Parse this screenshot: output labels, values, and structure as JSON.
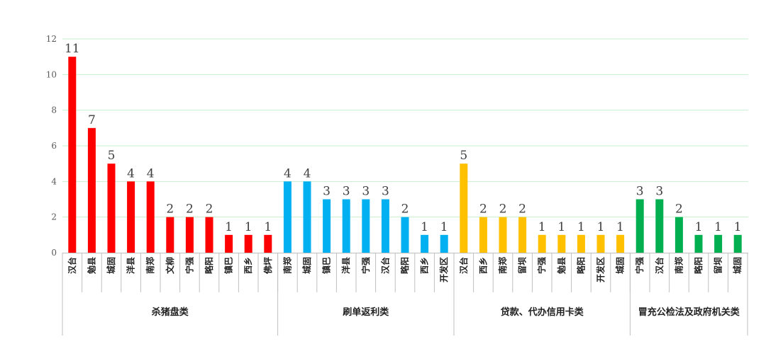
{
  "chart_data": {
    "type": "bar",
    "title": "",
    "xlabel": "",
    "ylabel": "",
    "ylim": [
      0,
      12
    ],
    "yticks": [
      0,
      2,
      4,
      6,
      8,
      10,
      12
    ],
    "grid": true,
    "legend": "none",
    "gridline_color": "#c6efce",
    "groups": [
      {
        "name": "杀猪盘类",
        "color": "#ff0000",
        "categories": [
          "汉台",
          "勉县",
          "城固",
          "洋县",
          "南郑",
          "文柳",
          "宁强",
          "略阳",
          "镇巴",
          "西乡",
          "佛坪"
        ],
        "values": [
          11,
          7,
          5,
          4,
          4,
          2,
          2,
          2,
          1,
          1,
          1
        ]
      },
      {
        "name": "刷单返利类",
        "color": "#00b0f0",
        "categories": [
          "南郑",
          "城固",
          "镇巴",
          "洋县",
          "宁强",
          "汉台",
          "略阳",
          "西乡",
          "开发区"
        ],
        "values": [
          4,
          4,
          3,
          3,
          3,
          3,
          2,
          1,
          1
        ]
      },
      {
        "name": "贷款、代办信用卡类",
        "color": "#ffc000",
        "categories": [
          "汉台",
          "西乡",
          "南郑",
          "留坝",
          "宁强",
          "勉县",
          "略阳",
          "开发区",
          "城固"
        ],
        "values": [
          5,
          2,
          2,
          2,
          1,
          1,
          1,
          1,
          1
        ]
      },
      {
        "name": "冒充公检法及政府机关类",
        "color": "#00b050",
        "categories": [
          "宁强",
          "汉台",
          "南郑",
          "略阳",
          "留坝",
          "城固"
        ],
        "values": [
          3,
          3,
          2,
          1,
          1,
          1
        ]
      }
    ]
  }
}
